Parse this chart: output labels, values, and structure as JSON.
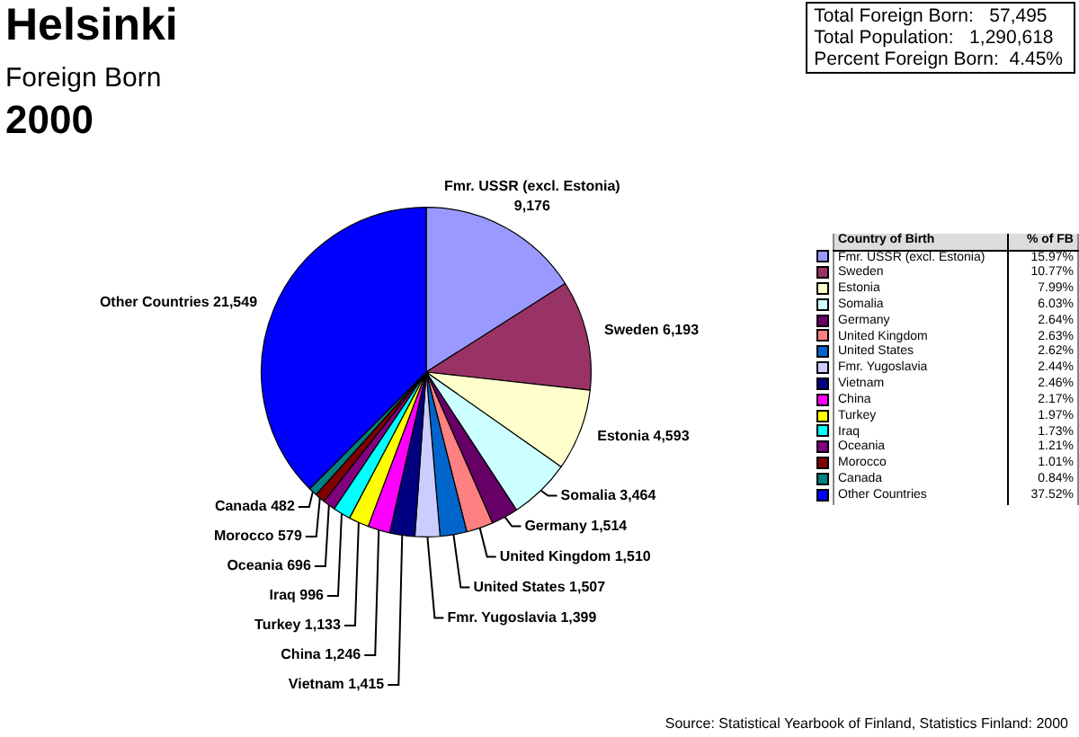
{
  "chart_data": {
    "type": "pie",
    "title": "Helsinki",
    "subtitle": "Foreign Born",
    "legend_title": "Country of Birth",
    "legend": "right",
    "categories": [
      "Fmr. USSR (excl. Estonia)",
      "Sweden",
      "Estonia",
      "Somalia",
      "Germany",
      "United Kingdom",
      "United States",
      "Fmr. Yugoslavia",
      "Vietnam",
      "China",
      "Turkey",
      "Iraq",
      "Oceania",
      "Morocco",
      "Canada",
      "Other Countries"
    ],
    "values": [
      9176,
      6193,
      4593,
      3464,
      1514,
      1510,
      1507,
      1399,
      1415,
      1246,
      1133,
      996,
      696,
      579,
      482,
      21549
    ],
    "value_labels": [
      "9,176",
      "6,193",
      "4,593",
      "3,464",
      "1,514",
      "1,510",
      "1,507",
      "1,399",
      "1,415",
      "1,246",
      "1,133",
      "996",
      "696",
      "579",
      "482",
      "21,549"
    ],
    "colors": [
      "#9999ff",
      "#993366",
      "#ffffcc",
      "#ccffff",
      "#660066",
      "#ff8080",
      "#0066cc",
      "#ccccff",
      "#000080",
      "#ff00ff",
      "#ffff00",
      "#00ffff",
      "#800080",
      "#800000",
      "#008080",
      "#0000ff"
    ],
    "annotations": [
      "2000",
      "Total Foreign Born:   57,495",
      "Total Population:   1,290,618",
      "Percent Foreign Born:  4.45%",
      "% of FB",
      "15.97%",
      "10.77%",
      "7.99%",
      "6.03%",
      "2.64%",
      "2.63%",
      "2.62%",
      "2.44%",
      "2.46%",
      "2.17%",
      "1.97%",
      "1.73%",
      "1.21%",
      "1.01%",
      "0.84%",
      "37.52%",
      "Source: Statistical Yearbook of Finland, Statistics Finland: 2000"
    ]
  }
}
